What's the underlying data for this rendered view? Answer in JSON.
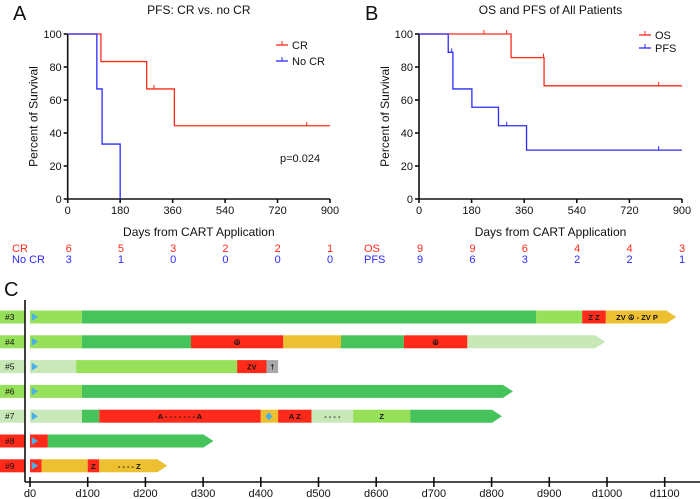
{
  "colors": {
    "red": "#ff2a1a",
    "blue": "#2b2bff",
    "green": "#46c35a",
    "light_green": "#97e05a",
    "pale_green": "#c8e8b8",
    "gold": "#ecc030",
    "gray": "#a8a8a8",
    "marker_blue": "#4ab0e8"
  },
  "chart_data": [
    {
      "type": "line",
      "panel_letter": "A",
      "title": "PFS: CR vs. no CR",
      "xlabel": "Days from CART Application",
      "ylabel": "Percent of Survival",
      "xlim": [
        0,
        900
      ],
      "ylim": [
        0,
        100
      ],
      "xticks": [
        "0",
        "180",
        "360",
        "540",
        "720",
        "900"
      ],
      "yticks": [
        "0",
        "20",
        "40",
        "60",
        "80",
        "100"
      ],
      "legend_position": "top-right",
      "annotation": "p=0.024",
      "series": [
        {
          "name": "CR",
          "color": "red",
          "steps": [
            [
              0,
              100
            ],
            [
              114,
              83.3
            ],
            [
              271,
              66.7
            ],
            [
              366,
              44.4
            ],
            [
              900,
              44.4
            ]
          ],
          "censored": [
            [
              296,
              66.7
            ],
            [
              820,
              44.4
            ]
          ]
        },
        {
          "name": "No CR",
          "color": "blue",
          "steps": [
            [
              0,
              100
            ],
            [
              100,
              66.7
            ],
            [
              118,
              33.3
            ],
            [
              180,
              0
            ]
          ],
          "censored": []
        }
      ],
      "risk_table": [
        {
          "label": "CR",
          "color": "red",
          "values": [
            "6",
            "5",
            "3",
            "2",
            "2",
            "1"
          ]
        },
        {
          "label": "No CR",
          "color": "blue",
          "values": [
            "3",
            "1",
            "0",
            "0",
            "0",
            "0"
          ]
        }
      ]
    },
    {
      "type": "line",
      "panel_letter": "B",
      "title": "OS and PFS of All Patients",
      "xlabel": "Days from CART Application",
      "ylabel": "Percent of Survival",
      "xlim": [
        0,
        900
      ],
      "ylim": [
        0,
        100
      ],
      "xticks": [
        "0",
        "180",
        "360",
        "540",
        "720",
        "900"
      ],
      "yticks": [
        "0",
        "20",
        "40",
        "60",
        "80",
        "100"
      ],
      "legend_position": "top-right",
      "series": [
        {
          "name": "OS",
          "color": "red",
          "steps": [
            [
              0,
              100
            ],
            [
              315,
              85.7
            ],
            [
              428,
              68.6
            ],
            [
              900,
              68.6
            ]
          ],
          "censored": [
            [
              222,
              100
            ],
            [
              300,
              100
            ],
            [
              426,
              85.7
            ],
            [
              820,
              68.6
            ]
          ]
        },
        {
          "name": "PFS",
          "color": "blue",
          "steps": [
            [
              0,
              100
            ],
            [
              100,
              88.9
            ],
            [
              116,
              66.7
            ],
            [
              181,
              55.6
            ],
            [
              272,
              44.4
            ],
            [
              368,
              29.6
            ],
            [
              900,
              29.6
            ]
          ],
          "censored": [
            [
              112,
              88.9
            ],
            [
              300,
              44.4
            ],
            [
              820,
              29.6
            ]
          ]
        }
      ],
      "risk_table": [
        {
          "label": "OS",
          "color": "red",
          "values": [
            "9",
            "9",
            "6",
            "4",
            "4",
            "3"
          ]
        },
        {
          "label": "PFS",
          "color": "blue",
          "values": [
            "9",
            "6",
            "3",
            "2",
            "2",
            "1"
          ]
        }
      ]
    },
    {
      "type": "swimmer",
      "panel_letter": "C",
      "xlim": [
        0,
        1100
      ],
      "xticks": [
        {
          "day": 0,
          "label": "d0"
        },
        {
          "day": 100,
          "label": "d100"
        },
        {
          "day": 200,
          "label": "d200"
        },
        {
          "day": 300,
          "label": "d300"
        },
        {
          "day": 400,
          "label": "d400"
        },
        {
          "day": 500,
          "label": "d500"
        },
        {
          "day": 600,
          "label": "d600"
        },
        {
          "day": 700,
          "label": "d700"
        },
        {
          "day": 800,
          "label": "d800"
        },
        {
          "day": 900,
          "label": "d900"
        },
        {
          "day": 1000,
          "label": "d1000"
        },
        {
          "day": 1100,
          "label": "d1100"
        }
      ],
      "rows": [
        {
          "label": "#3",
          "label_color": "light_green",
          "arrow": true,
          "segments": [
            {
              "start": 0,
              "end": 90,
              "color": "light_green",
              "text": ""
            },
            {
              "start": 90,
              "end": 877,
              "color": "green",
              "text": ""
            },
            {
              "start": 877,
              "end": 957,
              "color": "light_green",
              "text": ""
            },
            {
              "start": 957,
              "end": 998,
              "color": "red",
              "text": "Z  Z"
            },
            {
              "start": 998,
              "end": 1120,
              "color": "gold",
              "text": "ZV ☮  -  ZV  P"
            }
          ],
          "markers": []
        },
        {
          "label": "#4",
          "label_color": "light_green",
          "arrow": true,
          "segments": [
            {
              "start": 0,
              "end": 90,
              "color": "light_green",
              "text": ""
            },
            {
              "start": 90,
              "end": 279,
              "color": "green",
              "text": ""
            },
            {
              "start": 279,
              "end": 439,
              "color": "red",
              "text": "☮"
            },
            {
              "start": 439,
              "end": 539,
              "color": "gold",
              "text": ""
            },
            {
              "start": 539,
              "end": 648,
              "color": "green",
              "text": ""
            },
            {
              "start": 648,
              "end": 758,
              "color": "red",
              "text": "☮"
            },
            {
              "start": 758,
              "end": 997,
              "color": "pale_green",
              "text": ""
            }
          ],
          "markers": []
        },
        {
          "label": "#5",
          "label_color": "pale_green",
          "arrow": false,
          "segments": [
            {
              "start": 0,
              "end": 80,
              "color": "pale_green",
              "text": ""
            },
            {
              "start": 80,
              "end": 359,
              "color": "light_green",
              "text": ""
            },
            {
              "start": 359,
              "end": 410,
              "color": "red",
              "text": "ZV"
            },
            {
              "start": 410,
              "end": 430,
              "color": "gray",
              "text": "†"
            }
          ],
          "markers": []
        },
        {
          "label": "#6",
          "label_color": "light_green",
          "arrow": true,
          "segments": [
            {
              "start": 0,
              "end": 90,
              "color": "light_green",
              "text": ""
            },
            {
              "start": 90,
              "end": 837,
              "color": "green",
              "text": ""
            }
          ],
          "markers": []
        },
        {
          "label": "#7",
          "label_color": "pale_green",
          "arrow": true,
          "segments": [
            {
              "start": 0,
              "end": 90,
              "color": "pale_green",
              "text": ""
            },
            {
              "start": 90,
              "end": 120,
              "color": "green",
              "text": ""
            },
            {
              "start": 120,
              "end": 400,
              "color": "red",
              "text": "A  -  -  -  -  -  -  -  A"
            },
            {
              "start": 400,
              "end": 430,
              "color": "gold",
              "text": ""
            },
            {
              "start": 430,
              "end": 488,
              "color": "red",
              "text": "A    Z"
            },
            {
              "start": 488,
              "end": 560,
              "color": "pale_green",
              "text": "-  -  -  -"
            },
            {
              "start": 560,
              "end": 659,
              "color": "light_green",
              "text": "Z"
            },
            {
              "start": 659,
              "end": 818,
              "color": "green",
              "text": ""
            }
          ],
          "markers": [
            {
              "day": 414,
              "shape": "diamond"
            }
          ]
        },
        {
          "label": "#8",
          "label_color": "red",
          "arrow": true,
          "segments": [
            {
              "start": 0,
              "end": 31,
              "color": "red",
              "text": ""
            },
            {
              "start": 31,
              "end": 318,
              "color": "green",
              "text": ""
            }
          ],
          "markers": []
        },
        {
          "label": "#9",
          "label_color": "red",
          "arrow": true,
          "segments": [
            {
              "start": 0,
              "end": 20,
              "color": "red",
              "text": ""
            },
            {
              "start": 20,
              "end": 100,
              "color": "gold",
              "text": ""
            },
            {
              "start": 100,
              "end": 120,
              "color": "red",
              "text": "Z"
            },
            {
              "start": 120,
              "end": 238,
              "color": "gold",
              "text": "-  -  -  -  Z"
            }
          ],
          "markers": []
        }
      ]
    }
  ]
}
